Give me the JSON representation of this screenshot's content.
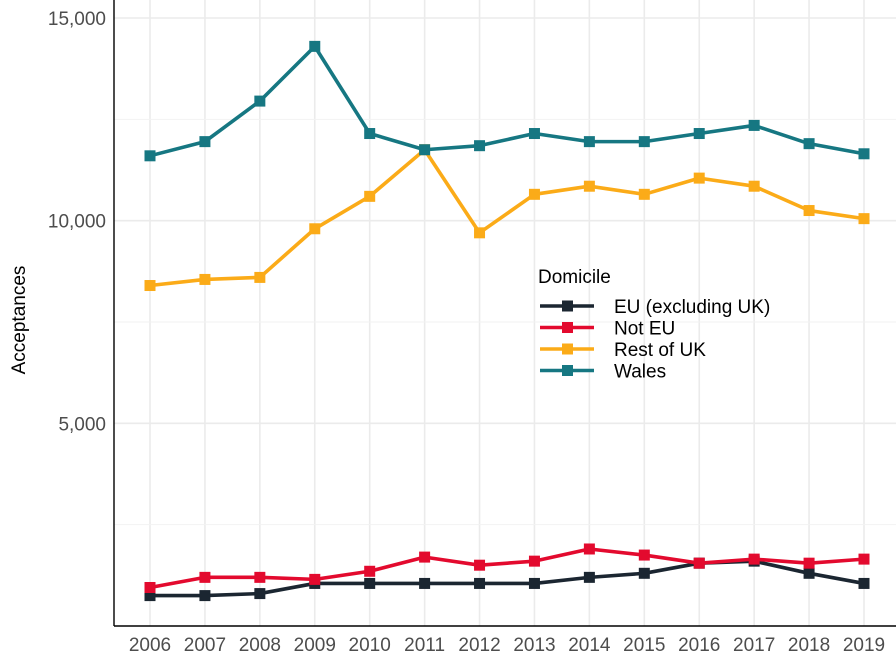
{
  "chart_data": {
    "type": "line",
    "title": "",
    "xlabel": "",
    "ylabel": "Acceptances",
    "ylim": [
      0,
      15000
    ],
    "yticks": [
      5000,
      10000,
      15000
    ],
    "ytick_labels": [
      "5,000",
      "10,000",
      "15,000"
    ],
    "x": [
      "2006",
      "2007",
      "2008",
      "2009",
      "2010",
      "2011",
      "2012",
      "2013",
      "2014",
      "2015",
      "2016",
      "2017",
      "2018",
      "2019"
    ],
    "grid": true,
    "legend": {
      "title": "Domicile",
      "position": "right-center"
    },
    "series": [
      {
        "name": "EU (excluding UK)",
        "color": "#1b2631",
        "values": [
          750,
          750,
          800,
          1050,
          1050,
          1050,
          1050,
          1050,
          1200,
          1300,
          1550,
          1600,
          1300,
          1050
        ]
      },
      {
        "name": "Not EU",
        "color": "#e30a2e",
        "values": [
          950,
          1200,
          1200,
          1150,
          1350,
          1700,
          1500,
          1600,
          1900,
          1750,
          1550,
          1650,
          1550,
          1650
        ]
      },
      {
        "name": "Rest of UK",
        "color": "#fbab18",
        "values": [
          8400,
          8550,
          8600,
          9800,
          10600,
          11750,
          9700,
          10650,
          10850,
          10650,
          11050,
          10850,
          10250,
          10050
        ]
      },
      {
        "name": "Wales",
        "color": "#167782",
        "values": [
          11600,
          11950,
          12950,
          14300,
          12150,
          11750,
          11850,
          12150,
          11950,
          11950,
          12150,
          12350,
          11900,
          11650
        ]
      }
    ]
  }
}
